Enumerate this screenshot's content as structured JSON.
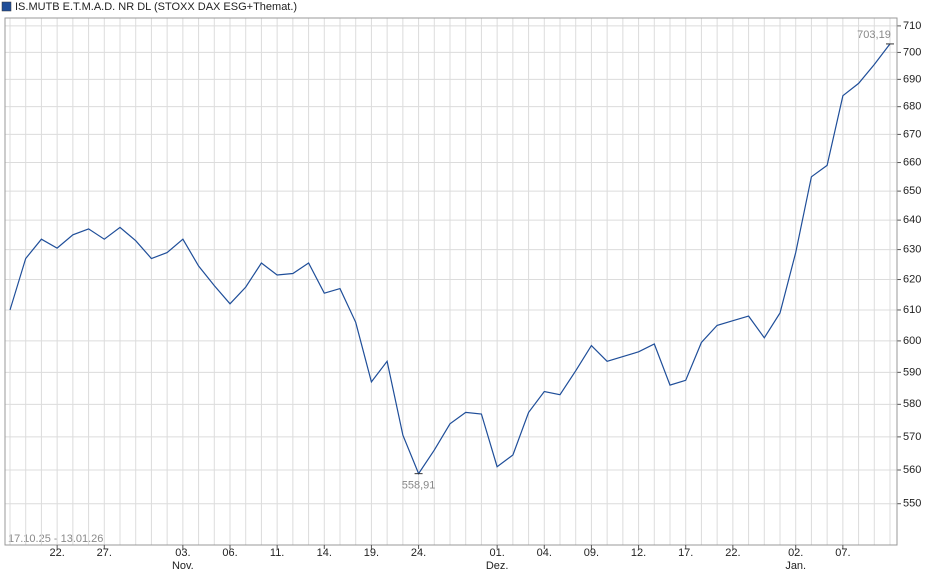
{
  "chart_data": {
    "type": "line",
    "title": "IS.MUTB E.T.M.A.D. NR DL (STOXX DAX ESG+Themat.)",
    "period": "17.10.25 - 13.01.26",
    "categories": [
      null,
      null,
      null,
      "22.",
      null,
      null,
      "27.",
      null,
      null,
      null,
      null,
      "03.",
      null,
      null,
      "06.",
      null,
      null,
      "11.",
      null,
      null,
      "14.",
      null,
      null,
      "19.",
      null,
      null,
      "24.",
      null,
      null,
      null,
      null,
      "01.",
      null,
      null,
      "04.",
      null,
      null,
      "09.",
      null,
      null,
      "12.",
      null,
      null,
      "17.",
      null,
      null,
      "22.",
      null,
      null,
      null,
      "02.",
      null,
      null,
      "07.",
      null,
      null,
      null
    ],
    "category_months": [
      null,
      null,
      null,
      null,
      null,
      null,
      null,
      null,
      null,
      null,
      null,
      "Nov.",
      null,
      null,
      null,
      null,
      null,
      null,
      null,
      null,
      null,
      null,
      null,
      null,
      null,
      null,
      null,
      null,
      null,
      null,
      null,
      "Dez.",
      null,
      null,
      null,
      null,
      null,
      null,
      null,
      null,
      null,
      null,
      null,
      null,
      null,
      null,
      null,
      null,
      null,
      null,
      "Jan.",
      null,
      null,
      null,
      null,
      null,
      null
    ],
    "values": [
      610,
      627,
      633.5,
      630.5,
      635,
      637,
      633.5,
      637.5,
      633,
      627,
      629,
      633.5,
      624.5,
      618,
      612,
      617.5,
      625.5,
      621.5,
      622,
      625.5,
      615.5,
      617,
      606,
      587,
      593.5,
      570.5,
      558.91,
      566,
      574,
      577.5,
      577,
      561,
      564.5,
      577.5,
      584,
      583,
      590.5,
      598.5,
      593.5,
      595,
      596.5,
      599,
      586,
      587.5,
      599.5,
      605,
      606.5,
      608,
      601,
      609,
      629,
      655,
      659,
      684,
      688.5,
      695.5,
      703.19
    ],
    "value_labels": [
      null,
      null,
      null,
      null,
      null,
      null,
      null,
      null,
      null,
      null,
      null,
      null,
      null,
      null,
      null,
      null,
      null,
      null,
      null,
      null,
      null,
      null,
      null,
      null,
      null,
      null,
      "558,91",
      null,
      null,
      null,
      null,
      null,
      null,
      null,
      null,
      null,
      null,
      null,
      null,
      null,
      null,
      null,
      null,
      null,
      null,
      null,
      null,
      null,
      null,
      null,
      null,
      null,
      null,
      null,
      null,
      null,
      "703,19"
    ],
    "color": "#1f4e99",
    "log_scale": true,
    "grid": true,
    "ylim": [
      538,
      713
    ],
    "yticks": [
      550,
      560,
      570,
      580,
      590,
      600,
      610,
      620,
      630,
      640,
      650,
      660,
      670,
      680,
      690,
      700,
      710
    ]
  }
}
